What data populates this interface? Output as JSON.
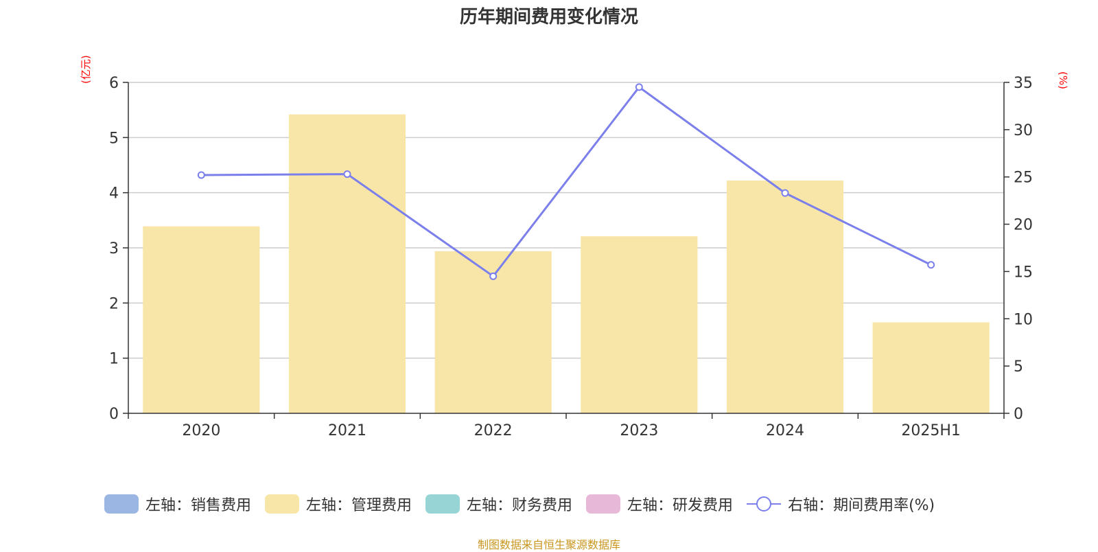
{
  "chart_data": {
    "type": "bar",
    "title": "历年期间费用变化情况",
    "categories": [
      "2020",
      "2021",
      "2022",
      "2023",
      "2024",
      "2025H1"
    ],
    "left_unit": "(亿元)",
    "right_unit": "(%)",
    "left_ylim": [
      0,
      6
    ],
    "left_ticks": [
      0,
      1,
      2,
      3,
      4,
      5,
      6
    ],
    "right_ylim": [
      0,
      35
    ],
    "right_ticks": [
      0,
      5,
      10,
      15,
      20,
      25,
      30,
      35
    ],
    "grid": true,
    "legend_position": "bottom",
    "series": [
      {
        "name": "左轴：销售费用",
        "type": "bar",
        "axis": "left",
        "color": "#9bb6e2",
        "values": [
          0,
          0,
          0,
          0,
          0,
          0
        ]
      },
      {
        "name": "左轴：管理费用",
        "type": "bar",
        "axis": "left",
        "color": "#f7e6a8",
        "values": [
          3.39,
          5.42,
          2.94,
          3.21,
          4.22,
          1.65
        ]
      },
      {
        "name": "左轴：财务费用",
        "type": "bar",
        "axis": "left",
        "color": "#96d4d6",
        "values": [
          0,
          0,
          0,
          0,
          0,
          0
        ]
      },
      {
        "name": "左轴：研发费用",
        "type": "bar",
        "axis": "left",
        "color": "#e8b8d8",
        "values": [
          0,
          0,
          0,
          0,
          0,
          0
        ]
      },
      {
        "name": "右轴：期间费用率(%)",
        "type": "line",
        "axis": "right",
        "color": "#7b7fec",
        "values": [
          25.2,
          25.3,
          14.5,
          34.5,
          23.3,
          15.7
        ]
      }
    ]
  },
  "source": "制图数据来自恒生聚源数据库"
}
